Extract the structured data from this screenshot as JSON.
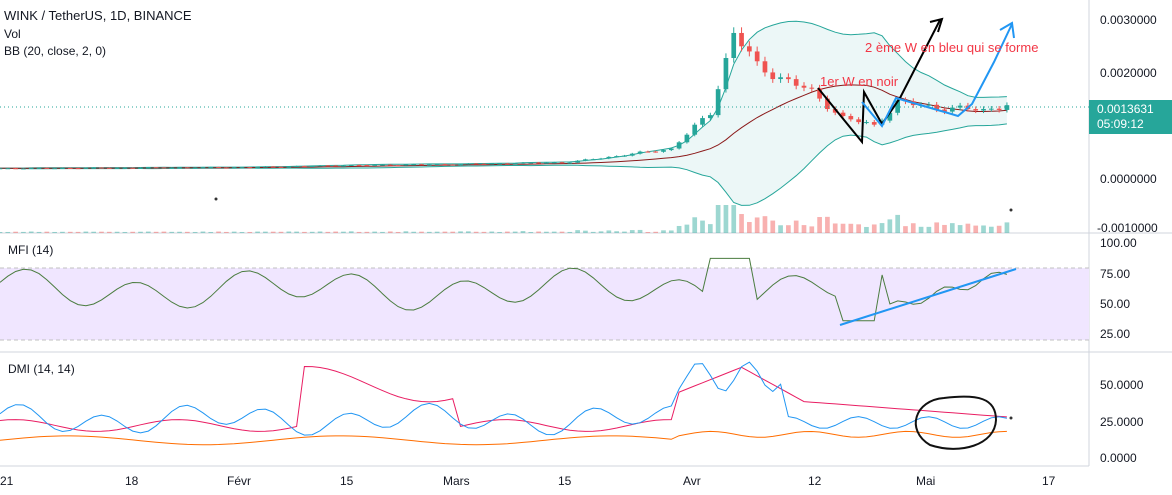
{
  "header": {
    "symbol": "WINK / TetherUS, 1D, BINANCE",
    "vol_label": "Vol",
    "bb_label": "BB (20, close, 2, 0)"
  },
  "price_axis": {
    "ticks": [
      "0.0030000",
      "0.0020000",
      "0.0000000",
      "-0.0010000"
    ],
    "last_price": "0.0013631",
    "countdown": "05:09:12"
  },
  "mfi": {
    "label": "MFI (14)",
    "ticks": [
      "100.00",
      "75.00",
      "50.00",
      "25.00"
    ]
  },
  "dmi": {
    "label": "DMI (14, 14)",
    "ticks": [
      "50.0000",
      "25.0000",
      "0.0000"
    ]
  },
  "time_axis": {
    "ticks": [
      "21",
      "18",
      "Févr",
      "15",
      "Mars",
      "15",
      "Avr",
      "12",
      "Mai",
      "17"
    ]
  },
  "annotations": {
    "first_w": "1er W en noir",
    "second_w": "2 ème W en bleu qui se forme"
  },
  "colors": {
    "up": "#26a69a",
    "down": "#ef5350",
    "bb_basis": "#8b1a1a",
    "bb_band": "#26a69a",
    "bb_fill": "#e0f2f1",
    "mfi_line": "#4a7c3f",
    "mfi_fill": "#f0e6ff",
    "plus_di": "#2196f3",
    "minus_di": "#e91e63",
    "adx": "#ff6d00",
    "annotation_red": "#f23645",
    "annotation_blue": "#2196f3",
    "annotation_black": "#000000"
  },
  "chart_data": {
    "type": "candlestick",
    "symbol": "WINK/USDT",
    "interval": "1D",
    "x_range": [
      "2021-01",
      "2021-05-20"
    ],
    "y_range": [
      -0.001,
      0.003
    ],
    "price_path": [
      {
        "date": "2021-01-01",
        "close": 0.00012
      },
      {
        "date": "2021-02-01",
        "close": 0.00014
      },
      {
        "date": "2021-02-15",
        "close": 0.00018
      },
      {
        "date": "2021-03-01",
        "close": 0.0002
      },
      {
        "date": "2021-03-15",
        "close": 0.00024
      },
      {
        "date": "2021-03-28",
        "close": 0.0005
      },
      {
        "date": "2021-04-02",
        "close": 0.0012
      },
      {
        "date": "2021-04-05",
        "close": 0.00275
      },
      {
        "date": "2021-04-08",
        "close": 0.0021
      },
      {
        "date": "2021-04-15",
        "close": 0.0016
      },
      {
        "date": "2021-04-19",
        "close": 0.0011
      },
      {
        "date": "2021-04-23",
        "close": 0.00095
      },
      {
        "date": "2021-04-26",
        "close": 0.0014
      },
      {
        "date": "2021-05-01",
        "close": 0.0013
      },
      {
        "date": "2021-05-07",
        "close": 0.00125
      },
      {
        "date": "2021-05-10",
        "close": 0.00136
      }
    ],
    "mfi_range": [
      25,
      100
    ],
    "dmi_range": [
      0,
      65
    ]
  }
}
